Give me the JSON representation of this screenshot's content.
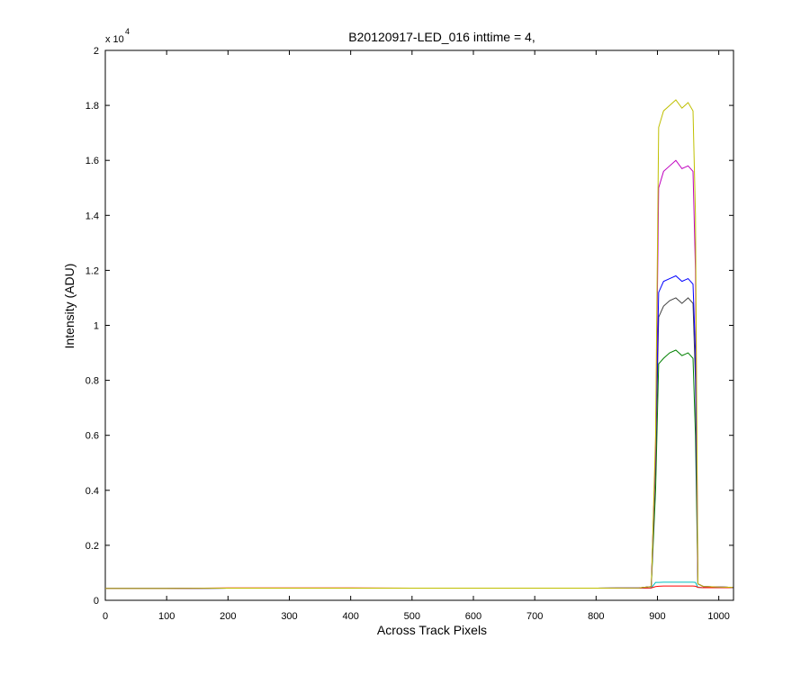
{
  "chart_data": {
    "type": "line",
    "title": "B20120917-LED_016 inttime = 4,",
    "x_label": "Across Track Pixels",
    "y_label": "Intensity (ADU)",
    "y_multiplier": {
      "base": "x 10",
      "exponent": "4"
    },
    "xlim": [
      0,
      1024
    ],
    "xticks": [
      0,
      100,
      200,
      300,
      400,
      500,
      600,
      700,
      800,
      900,
      1000
    ],
    "ylim": [
      0,
      2
    ],
    "yticks": [
      0,
      0.2,
      0.4,
      0.6,
      0.8,
      1,
      1.2,
      1.4,
      1.6,
      1.8,
      2
    ],
    "x": [
      0,
      100,
      200,
      300,
      400,
      500,
      600,
      700,
      800,
      870,
      890,
      897,
      902,
      910,
      920,
      930,
      940,
      950,
      958,
      962,
      966,
      975,
      1023
    ],
    "series": [
      {
        "color": "#00bfbf",
        "values": [
          0.043,
          0.043,
          0.044,
          0.044,
          0.044,
          0.044,
          0.044,
          0.044,
          0.044,
          0.044,
          0.045,
          0.065,
          0.065,
          0.066,
          0.066,
          0.066,
          0.066,
          0.066,
          0.066,
          0.065,
          0.047,
          0.046,
          0.046
        ]
      },
      {
        "color": "#ff0000",
        "values": [
          0.043,
          0.043,
          0.045,
          0.045,
          0.045,
          0.044,
          0.044,
          0.044,
          0.044,
          0.044,
          0.045,
          0.05,
          0.051,
          0.052,
          0.052,
          0.052,
          0.052,
          0.052,
          0.052,
          0.051,
          0.047,
          0.046,
          0.046
        ]
      },
      {
        "color": "#008000",
        "values": [
          0.043,
          0.043,
          0.044,
          0.044,
          0.044,
          0.044,
          0.044,
          0.044,
          0.044,
          0.045,
          0.05,
          0.4,
          0.86,
          0.88,
          0.9,
          0.91,
          0.89,
          0.9,
          0.88,
          0.6,
          0.06,
          0.05,
          0.047
        ]
      },
      {
        "color": "#404040",
        "values": [
          0.043,
          0.043,
          0.044,
          0.044,
          0.044,
          0.044,
          0.044,
          0.044,
          0.044,
          0.045,
          0.05,
          0.5,
          1.03,
          1.07,
          1.09,
          1.1,
          1.08,
          1.1,
          1.08,
          0.8,
          0.06,
          0.05,
          0.047
        ]
      },
      {
        "color": "#0000ff",
        "values": [
          0.043,
          0.043,
          0.044,
          0.044,
          0.044,
          0.044,
          0.044,
          0.044,
          0.044,
          0.045,
          0.05,
          0.55,
          1.12,
          1.16,
          1.17,
          1.18,
          1.16,
          1.17,
          1.15,
          0.9,
          0.06,
          0.05,
          0.047
        ]
      },
      {
        "color": "#bf00bf",
        "values": [
          0.043,
          0.043,
          0.044,
          0.044,
          0.044,
          0.044,
          0.044,
          0.044,
          0.044,
          0.045,
          0.05,
          0.55,
          1.5,
          1.56,
          1.58,
          1.6,
          1.57,
          1.58,
          1.56,
          1.2,
          0.06,
          0.05,
          0.047
        ]
      },
      {
        "color": "#bfbf00",
        "values": [
          0.043,
          0.043,
          0.044,
          0.044,
          0.044,
          0.044,
          0.044,
          0.044,
          0.044,
          0.045,
          0.05,
          0.6,
          1.72,
          1.78,
          1.8,
          1.82,
          1.79,
          1.81,
          1.78,
          1.4,
          0.06,
          0.05,
          0.047
        ]
      }
    ]
  }
}
